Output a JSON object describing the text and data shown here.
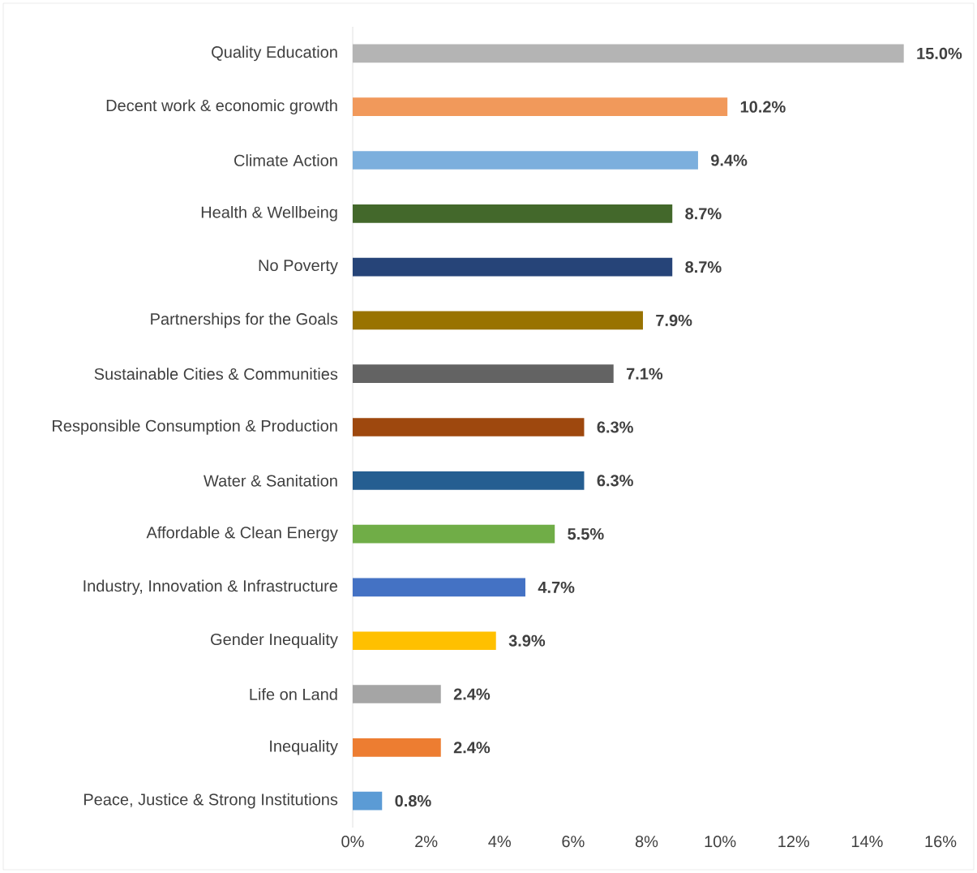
{
  "chart_data": {
    "type": "bar",
    "orientation": "horizontal",
    "categories": [
      "Quality Education",
      "Decent work & economic growth",
      "Climate Action",
      "Health & Wellbeing",
      "No Poverty",
      "Partnerships for the Goals",
      "Sustainable Cities & Communities",
      "Responsible Consumption & Production",
      "Water & Sanitation",
      "Affordable & Clean Energy",
      "Industry, Innovation & Infrastructure",
      "Gender Inequality",
      "Life on Land",
      "Inequality",
      "Peace, Justice & Strong Institutions"
    ],
    "values": [
      15.0,
      10.2,
      9.4,
      8.7,
      8.7,
      7.9,
      7.1,
      6.3,
      6.3,
      5.5,
      4.7,
      3.9,
      2.4,
      2.4,
      0.8
    ],
    "value_labels": [
      "15.0%",
      "10.2%",
      "9.4%",
      "8.7%",
      "8.7%",
      "7.9%",
      "7.1%",
      "6.3%",
      "6.3%",
      "5.5%",
      "4.7%",
      "3.9%",
      "2.4%",
      "2.4%",
      "0.8%"
    ],
    "colors": [
      "#b4b4b4",
      "#f1995b",
      "#7cafdd",
      "#43682b",
      "#264478",
      "#997300",
      "#636363",
      "#9e480e",
      "#255e91",
      "#70ad47",
      "#4472c4",
      "#ffc000",
      "#a5a5a5",
      "#ed7d31",
      "#5b9bd5"
    ],
    "xlim": [
      0,
      16
    ],
    "xticks": [
      {
        "value": 0,
        "label": "0%"
      },
      {
        "value": 2,
        "label": "2%"
      },
      {
        "value": 4,
        "label": "4%"
      },
      {
        "value": 6,
        "label": "6%"
      },
      {
        "value": 8,
        "label": "8%"
      },
      {
        "value": 10,
        "label": "10%"
      },
      {
        "value": 12,
        "label": "12%"
      },
      {
        "value": 14,
        "label": "14%"
      },
      {
        "value": 16,
        "label": "16%"
      }
    ]
  }
}
